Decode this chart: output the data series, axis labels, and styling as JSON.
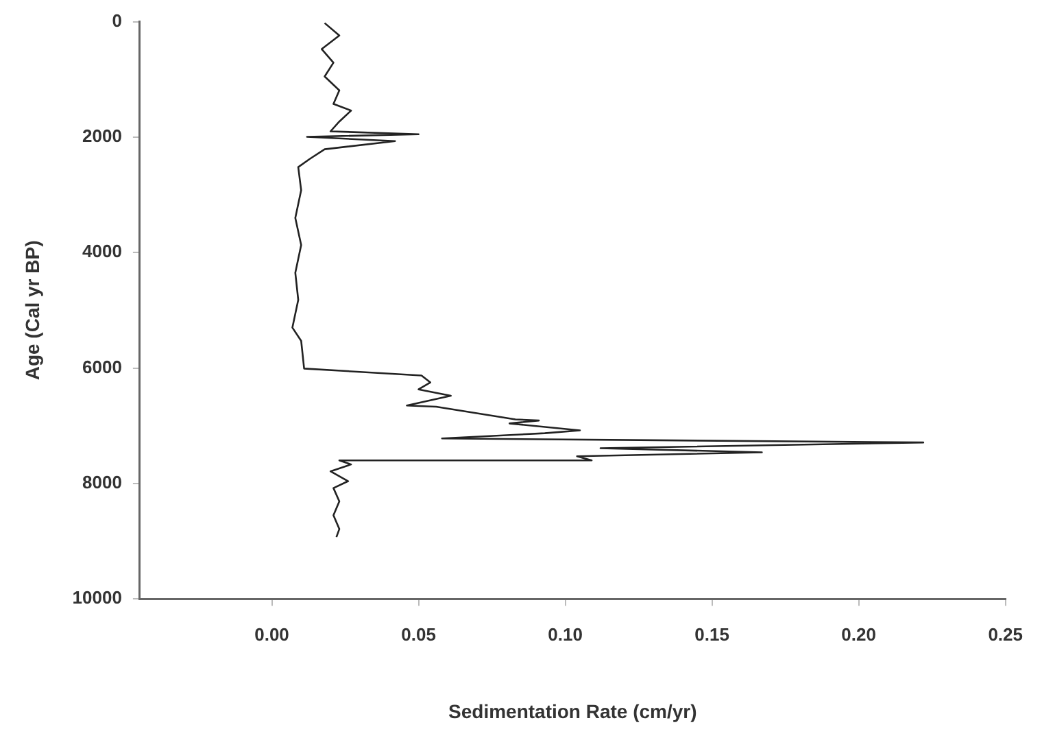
{
  "chart_data": {
    "type": "line",
    "xlabel": "Sedimentation Rate (cm/yr)",
    "ylabel": "Age (Cal yr BP)",
    "x": [
      0.018,
      0.023,
      0.017,
      0.021,
      0.018,
      0.023,
      0.021,
      0.027,
      0.023,
      0.02,
      0.05,
      0.012,
      0.042,
      0.018,
      0.013,
      0.009,
      0.01,
      0.008,
      0.01,
      0.008,
      0.009,
      0.007,
      0.01,
      0.011,
      0.051,
      0.054,
      0.05,
      0.061,
      0.046,
      0.056,
      0.083,
      0.091,
      0.081,
      0.105,
      0.093,
      0.058,
      0.222,
      0.112,
      0.167,
      0.104,
      0.109,
      0.023,
      0.027,
      0.02,
      0.026,
      0.021,
      0.023,
      0.021,
      0.023,
      0.022
    ],
    "values": [
      24,
      240,
      475,
      710,
      950,
      1190,
      1425,
      1540,
      1730,
      1900,
      1950,
      1995,
      2070,
      2210,
      2375,
      2520,
      2920,
      3400,
      3870,
      4350,
      4820,
      5300,
      5530,
      6010,
      6130,
      6250,
      6370,
      6480,
      6650,
      6670,
      6890,
      6910,
      6960,
      7080,
      7130,
      7220,
      7290,
      7390,
      7460,
      7530,
      7600,
      7600,
      7670,
      7790,
      7960,
      8080,
      8310,
      8550,
      8790,
      8930
    ],
    "color": "#222222",
    "xlim": [
      -0.045,
      0.25
    ],
    "xticks": [
      {
        "value": 0,
        "label": "0.00"
      },
      {
        "value": 0.05,
        "label": "0.05"
      },
      {
        "value": 0.1,
        "label": "0.10"
      },
      {
        "value": 0.15,
        "label": "0.15"
      },
      {
        "value": 0.2,
        "label": "0.20"
      },
      {
        "value": 0.25,
        "label": "0.25"
      }
    ],
    "ylim": [
      10000,
      0
    ],
    "yticks": [
      0,
      2000,
      4000,
      6000,
      8000,
      10000
    ],
    "grid": false,
    "legend": false,
    "marker": "none",
    "line_style": "solid"
  }
}
